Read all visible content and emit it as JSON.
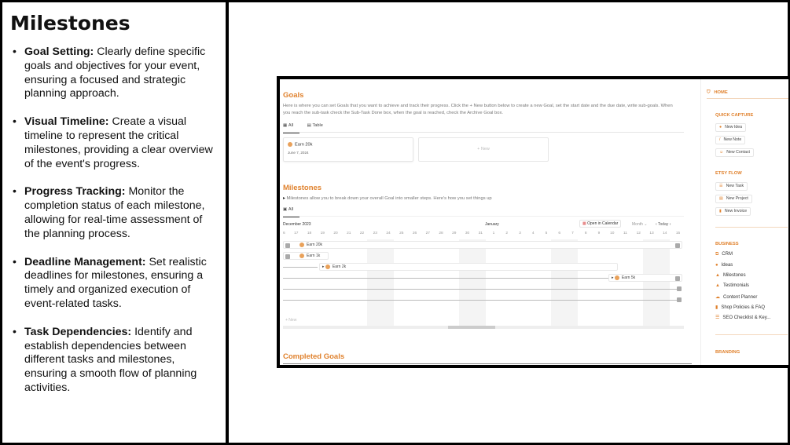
{
  "left": {
    "title": "Milestones",
    "items": [
      {
        "bold": "Goal Setting:",
        "text": " Clearly define specific goals and objectives for your event, ensuring a focused and strategic planning approach."
      },
      {
        "bold": "Visual Timeline:",
        "text": " Create a visual timeline to represent the critical milestones, providing a clear overview of the event's progress."
      },
      {
        "bold": "Progress Tracking:",
        "text": " Monitor the completion status of each milestone, allowing for real-time assessment of the planning process."
      },
      {
        "bold": "Deadline Management:",
        "text": " Set realistic deadlines for milestones, ensuring a timely and organized execution of event-related tasks."
      },
      {
        "bold": "Task Dependencies:",
        "text": " Identify and establish dependencies between different tasks and milestones, ensuring a smooth flow of planning activities."
      }
    ]
  },
  "goals": {
    "title": "Goals",
    "description": "Here is where you can set Goals that you want to achieve and track their progress. Click the + New button below to create a new Goal, set the start date and the due date, write sub-goals. When you reach the sub-task check the Sub-Task Done box, when the goal is reached, check the Archive Goal box.",
    "tabs": [
      "All",
      "Table"
    ],
    "card": {
      "title": "Earn 20k",
      "date": "June 7, 2024"
    },
    "new_label": "+ New"
  },
  "milestones": {
    "title": "Milestones",
    "toggle": "Milestones allow you to break down your overall Goal into smaller steps. Here's how you set things up",
    "tab": "All",
    "month_left": "December 2023",
    "month_mid": "January",
    "open_calendar": "Open in Calendar",
    "view": "Month ⌄",
    "today": "Today",
    "days": [
      "16",
      "17",
      "18",
      "19",
      "20",
      "21",
      "22",
      "23",
      "24",
      "25",
      "26",
      "27",
      "28",
      "29",
      "30",
      "31",
      "1",
      "2",
      "3",
      "4",
      "5",
      "6",
      "7",
      "8",
      "9",
      "10",
      "11",
      "12",
      "13",
      "14",
      "15"
    ],
    "bars": [
      "Earn 20k",
      "Earn 1k",
      "Earn 2k",
      "Earn 5k"
    ],
    "new_label": "+ New"
  },
  "completed": {
    "title": "Completed Goals"
  },
  "sidebar": {
    "home": "HOME",
    "quick_capture": "QUICK CAPTURE",
    "qc": [
      "New Idea",
      "New Note",
      "New Contact"
    ],
    "etsy_flow": "ETSY FLOW",
    "ef": [
      "New Task",
      "New Project",
      "New Invoice"
    ],
    "business": "BUSINESS",
    "biz": [
      "CRM",
      "Ideas",
      "Milestones",
      "Testimonials",
      "Content Planner",
      "Shop Policies & FAQ",
      "SEO Checklist & Key..."
    ],
    "branding": "BRANDING"
  },
  "colors": {
    "accent": "#e0822e",
    "dot": "#e9a15a"
  }
}
